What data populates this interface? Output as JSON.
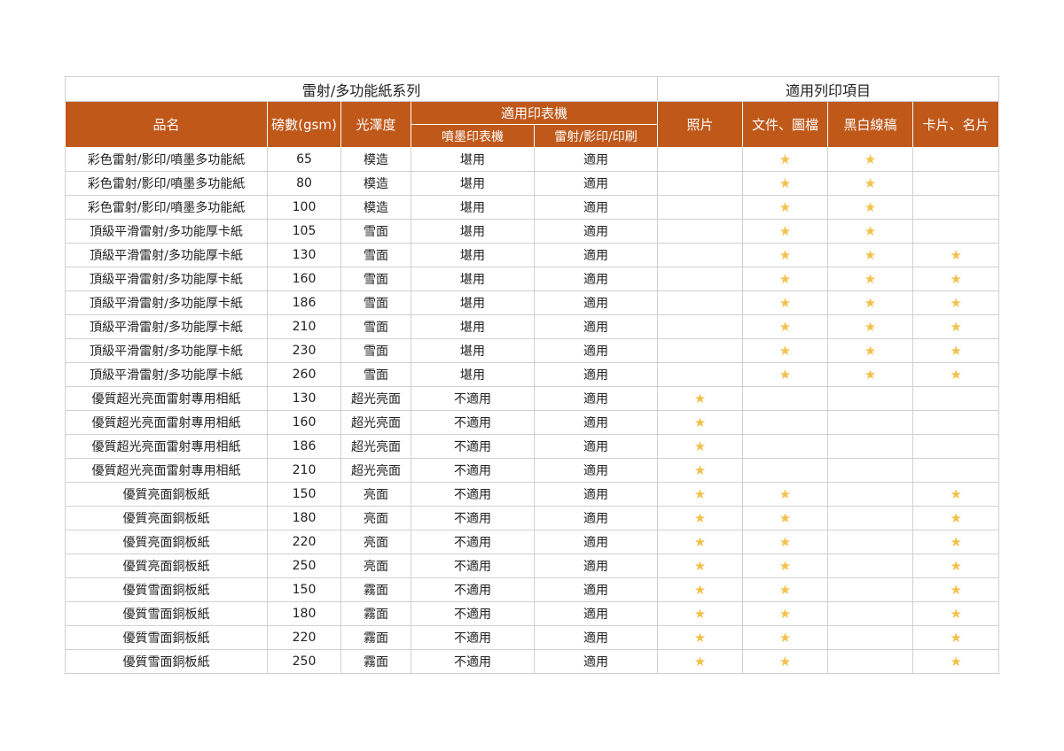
{
  "header": {
    "series_title": "雷射/多功能紙系列",
    "usage_title": "適用列印項目",
    "name": "品名",
    "weight": "磅數(gsm)",
    "finish": "光澤度",
    "printer_group": "適用印表機",
    "inkjet": "噴墨印表機",
    "laser": "雷射/影印/印刷",
    "photo": "照片",
    "document": "文件、圖檔",
    "bw": "黑白線稿",
    "card": "卡片、名片"
  },
  "star_symbol": "★",
  "star_color": "#f2c14b",
  "header_color": "#c0581a",
  "rows": [
    {
      "name": "彩色雷射/影印/噴墨多功能紙",
      "weight": "65",
      "finish": "模造",
      "inkjet": "堪用",
      "laser": "適用",
      "photo": false,
      "document": true,
      "bw": true,
      "card": false
    },
    {
      "name": "彩色雷射/影印/噴墨多功能紙",
      "weight": "80",
      "finish": "模造",
      "inkjet": "堪用",
      "laser": "適用",
      "photo": false,
      "document": true,
      "bw": true,
      "card": false
    },
    {
      "name": "彩色雷射/影印/噴墨多功能紙",
      "weight": "100",
      "finish": "模造",
      "inkjet": "堪用",
      "laser": "適用",
      "photo": false,
      "document": true,
      "bw": true,
      "card": false
    },
    {
      "name": "頂級平滑雷射/多功能厚卡紙",
      "weight": "105",
      "finish": "雪面",
      "inkjet": "堪用",
      "laser": "適用",
      "photo": false,
      "document": true,
      "bw": true,
      "card": false
    },
    {
      "name": "頂級平滑雷射/多功能厚卡紙",
      "weight": "130",
      "finish": "雪面",
      "inkjet": "堪用",
      "laser": "適用",
      "photo": false,
      "document": true,
      "bw": true,
      "card": true
    },
    {
      "name": "頂級平滑雷射/多功能厚卡紙",
      "weight": "160",
      "finish": "雪面",
      "inkjet": "堪用",
      "laser": "適用",
      "photo": false,
      "document": true,
      "bw": true,
      "card": true
    },
    {
      "name": "頂級平滑雷射/多功能厚卡紙",
      "weight": "186",
      "finish": "雪面",
      "inkjet": "堪用",
      "laser": "適用",
      "photo": false,
      "document": true,
      "bw": true,
      "card": true
    },
    {
      "name": "頂級平滑雷射/多功能厚卡紙",
      "weight": "210",
      "finish": "雪面",
      "inkjet": "堪用",
      "laser": "適用",
      "photo": false,
      "document": true,
      "bw": true,
      "card": true
    },
    {
      "name": "頂級平滑雷射/多功能厚卡紙",
      "weight": "230",
      "finish": "雪面",
      "inkjet": "堪用",
      "laser": "適用",
      "photo": false,
      "document": true,
      "bw": true,
      "card": true
    },
    {
      "name": "頂級平滑雷射/多功能厚卡紙",
      "weight": "260",
      "finish": "雪面",
      "inkjet": "堪用",
      "laser": "適用",
      "photo": false,
      "document": true,
      "bw": true,
      "card": true
    },
    {
      "name": "優質超光亮面雷射專用相紙",
      "weight": "130",
      "finish": "超光亮面",
      "inkjet": "不適用",
      "laser": "適用",
      "photo": true,
      "document": false,
      "bw": false,
      "card": false
    },
    {
      "name": "優質超光亮面雷射專用相紙",
      "weight": "160",
      "finish": "超光亮面",
      "inkjet": "不適用",
      "laser": "適用",
      "photo": true,
      "document": false,
      "bw": false,
      "card": false
    },
    {
      "name": "優質超光亮面雷射專用相紙",
      "weight": "186",
      "finish": "超光亮面",
      "inkjet": "不適用",
      "laser": "適用",
      "photo": true,
      "document": false,
      "bw": false,
      "card": false
    },
    {
      "name": "優質超光亮面雷射專用相紙",
      "weight": "210",
      "finish": "超光亮面",
      "inkjet": "不適用",
      "laser": "適用",
      "photo": true,
      "document": false,
      "bw": false,
      "card": false
    },
    {
      "name": "優質亮面銅板紙",
      "weight": "150",
      "finish": "亮面",
      "inkjet": "不適用",
      "laser": "適用",
      "photo": true,
      "document": true,
      "bw": false,
      "card": true
    },
    {
      "name": "優質亮面銅板紙",
      "weight": "180",
      "finish": "亮面",
      "inkjet": "不適用",
      "laser": "適用",
      "photo": true,
      "document": true,
      "bw": false,
      "card": true
    },
    {
      "name": "優質亮面銅板紙",
      "weight": "220",
      "finish": "亮面",
      "inkjet": "不適用",
      "laser": "適用",
      "photo": true,
      "document": true,
      "bw": false,
      "card": true
    },
    {
      "name": "優質亮面銅板紙",
      "weight": "250",
      "finish": "亮面",
      "inkjet": "不適用",
      "laser": "適用",
      "photo": true,
      "document": true,
      "bw": false,
      "card": true
    },
    {
      "name": "優質雪面銅板紙",
      "weight": "150",
      "finish": "霧面",
      "inkjet": "不適用",
      "laser": "適用",
      "photo": true,
      "document": true,
      "bw": false,
      "card": true
    },
    {
      "name": "優質雪面銅板紙",
      "weight": "180",
      "finish": "霧面",
      "inkjet": "不適用",
      "laser": "適用",
      "photo": true,
      "document": true,
      "bw": false,
      "card": true
    },
    {
      "name": "優質雪面銅板紙",
      "weight": "220",
      "finish": "霧面",
      "inkjet": "不適用",
      "laser": "適用",
      "photo": true,
      "document": true,
      "bw": false,
      "card": true
    },
    {
      "name": "優質雪面銅板紙",
      "weight": "250",
      "finish": "霧面",
      "inkjet": "不適用",
      "laser": "適用",
      "photo": true,
      "document": true,
      "bw": false,
      "card": true
    }
  ]
}
